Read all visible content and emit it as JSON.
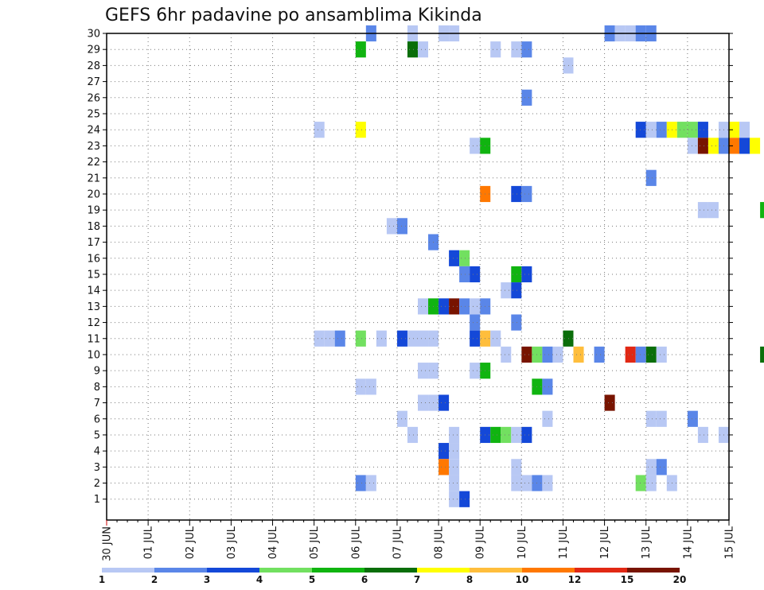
{
  "chart_data": {
    "type": "heatmap",
    "title": "GEFS 6hr padavine po ansamblima Kikinda",
    "xlabel": "",
    "ylabel": "",
    "x_start": "30 JUN",
    "x_step": "6h",
    "x_ticks": [
      "30 JUN",
      "01 JUL",
      "02 JUL",
      "03 JUL",
      "04 JUL",
      "05 JUL",
      "06 JUL",
      "07 JUL",
      "08 JUL",
      "09 JUL",
      "10 JUL",
      "11 JUL",
      "12 JUL",
      "13 JUL",
      "14 JUL",
      "15 JUL"
    ],
    "y_ticks": [
      1,
      2,
      3,
      4,
      5,
      6,
      7,
      8,
      9,
      10,
      11,
      12,
      13,
      14,
      15,
      16,
      17,
      18,
      19,
      20,
      21,
      22,
      23,
      24,
      25,
      26,
      27,
      28,
      29,
      30
    ],
    "ylim": [
      0,
      30
    ],
    "grid": true,
    "colorbar": {
      "labels": [
        "1",
        "2",
        "3",
        "4",
        "5",
        "6",
        "7",
        "8",
        "10",
        "12",
        "15",
        "20"
      ],
      "colors": [
        "#b8c8f4",
        "#5a86e8",
        "#1448d8",
        "#72e060",
        "#10b410",
        "#0a6e0a",
        "#ffff00",
        "#ffbe3c",
        "#ff7800",
        "#e12814",
        "#781400"
      ],
      "placement": "bottom"
    },
    "cells": [
      {
        "x": "06 JUL 06",
        "member": 30,
        "bin": 2
      },
      {
        "x": "07 JUL 06",
        "member": 30,
        "bin": 1
      },
      {
        "x": "08 JUL 00",
        "member": 30,
        "bin": 1
      },
      {
        "x": "08 JUL 06",
        "member": 30,
        "bin": 1
      },
      {
        "x": "12 JUL 00",
        "member": 30,
        "bin": 2
      },
      {
        "x": "12 JUL 06",
        "member": 30,
        "bin": 1
      },
      {
        "x": "12 JUL 12",
        "member": 30,
        "bin": 1
      },
      {
        "x": "12 JUL 18",
        "member": 30,
        "bin": 2
      },
      {
        "x": "13 JUL 00",
        "member": 30,
        "bin": 2
      },
      {
        "x": "06 JUL 00",
        "member": 29,
        "bin": 5
      },
      {
        "x": "07 JUL 06",
        "member": 29,
        "bin": 6
      },
      {
        "x": "07 JUL 12",
        "member": 29,
        "bin": 1
      },
      {
        "x": "09 JUL 06",
        "member": 29,
        "bin": 1
      },
      {
        "x": "09 JUL 18",
        "member": 29,
        "bin": 1
      },
      {
        "x": "10 JUL 00",
        "member": 29,
        "bin": 2
      },
      {
        "x": "11 JUL 00",
        "member": 28,
        "bin": 1
      },
      {
        "x": "10 JUL 00",
        "member": 26,
        "bin": 2
      },
      {
        "x": "05 JUL 00",
        "member": 24,
        "bin": 1
      },
      {
        "x": "06 JUL 00",
        "member": 24,
        "bin": 7
      },
      {
        "x": "12 JUL 18",
        "member": 24,
        "bin": 3
      },
      {
        "x": "13 JUL 00",
        "member": 24,
        "bin": 1
      },
      {
        "x": "13 JUL 06",
        "member": 24,
        "bin": 2
      },
      {
        "x": "13 JUL 12",
        "member": 24,
        "bin": 7
      },
      {
        "x": "13 JUL 18",
        "member": 24,
        "bin": 4
      },
      {
        "x": "14 JUL 00",
        "member": 24,
        "bin": 4
      },
      {
        "x": "14 JUL 06",
        "member": 24,
        "bin": 3
      },
      {
        "x": "14 JUL 18",
        "member": 24,
        "bin": 1
      },
      {
        "x": "15 JUL 00",
        "member": 24,
        "bin": 7
      },
      {
        "x": "15 JUL 06",
        "member": 24,
        "bin": 1
      },
      {
        "x": "08 JUL 18",
        "member": 23,
        "bin": 1
      },
      {
        "x": "09 JUL 00",
        "member": 23,
        "bin": 5
      },
      {
        "x": "14 JUL 00",
        "member": 23,
        "bin": 1
      },
      {
        "x": "14 JUL 06",
        "member": 23,
        "bin": 11
      },
      {
        "x": "14 JUL 12",
        "member": 23,
        "bin": 7
      },
      {
        "x": "14 JUL 18",
        "member": 23,
        "bin": 2
      },
      {
        "x": "15 JUL 00",
        "member": 23,
        "bin": 9
      },
      {
        "x": "15 JUL 06",
        "member": 23,
        "bin": 3
      },
      {
        "x": "15 JUL 12",
        "member": 23,
        "bin": 7
      },
      {
        "x": "13 JUL 00",
        "member": 21,
        "bin": 2
      },
      {
        "x": "09 JUL 00",
        "member": 20,
        "bin": 9
      },
      {
        "x": "09 JUL 18",
        "member": 20,
        "bin": 3
      },
      {
        "x": "10 JUL 00",
        "member": 20,
        "bin": 2
      },
      {
        "x": "14 JUL 06",
        "member": 19,
        "bin": 1
      },
      {
        "x": "14 JUL 12",
        "member": 19,
        "bin": 1
      },
      {
        "x": "15 JUL 18",
        "member": 19,
        "bin": 5
      },
      {
        "x": "06 JUL 18",
        "member": 18,
        "bin": 1
      },
      {
        "x": "07 JUL 00",
        "member": 18,
        "bin": 2
      },
      {
        "x": "07 JUL 18",
        "member": 17,
        "bin": 2
      },
      {
        "x": "08 JUL 06",
        "member": 16,
        "bin": 3
      },
      {
        "x": "08 JUL 12",
        "member": 16,
        "bin": 4
      },
      {
        "x": "08 JUL 12",
        "member": 15,
        "bin": 2
      },
      {
        "x": "08 JUL 18",
        "member": 15,
        "bin": 3
      },
      {
        "x": "09 JUL 18",
        "member": 15,
        "bin": 5
      },
      {
        "x": "10 JUL 00",
        "member": 15,
        "bin": 3
      },
      {
        "x": "09 JUL 12",
        "member": 14,
        "bin": 1
      },
      {
        "x": "09 JUL 18",
        "member": 14,
        "bin": 3
      },
      {
        "x": "07 JUL 12",
        "member": 13,
        "bin": 1
      },
      {
        "x": "07 JUL 18",
        "member": 13,
        "bin": 5
      },
      {
        "x": "08 JUL 00",
        "member": 13,
        "bin": 3
      },
      {
        "x": "08 JUL 06",
        "member": 13,
        "bin": 11
      },
      {
        "x": "08 JUL 12",
        "member": 13,
        "bin": 2
      },
      {
        "x": "08 JUL 18",
        "member": 13,
        "bin": 1
      },
      {
        "x": "09 JUL 00",
        "member": 13,
        "bin": 2
      },
      {
        "x": "08 JUL 18",
        "member": 12,
        "bin": 2
      },
      {
        "x": "09 JUL 18",
        "member": 12,
        "bin": 2
      },
      {
        "x": "05 JUL 00",
        "member": 11,
        "bin": 1
      },
      {
        "x": "05 JUL 06",
        "member": 11,
        "bin": 1
      },
      {
        "x": "05 JUL 12",
        "member": 11,
        "bin": 2
      },
      {
        "x": "06 JUL 00",
        "member": 11,
        "bin": 4
      },
      {
        "x": "06 JUL 12",
        "member": 11,
        "bin": 1
      },
      {
        "x": "07 JUL 00",
        "member": 11,
        "bin": 3
      },
      {
        "x": "07 JUL 06",
        "member": 11,
        "bin": 1
      },
      {
        "x": "07 JUL 12",
        "member": 11,
        "bin": 1
      },
      {
        "x": "07 JUL 18",
        "member": 11,
        "bin": 1
      },
      {
        "x": "08 JUL 18",
        "member": 11,
        "bin": 3
      },
      {
        "x": "09 JUL 00",
        "member": 11,
        "bin": 8
      },
      {
        "x": "09 JUL 06",
        "member": 11,
        "bin": 1
      },
      {
        "x": "11 JUL 00",
        "member": 11,
        "bin": 6
      },
      {
        "x": "09 JUL 12",
        "member": 10,
        "bin": 1
      },
      {
        "x": "10 JUL 00",
        "member": 10,
        "bin": 11
      },
      {
        "x": "10 JUL 06",
        "member": 10,
        "bin": 4
      },
      {
        "x": "10 JUL 12",
        "member": 10,
        "bin": 2
      },
      {
        "x": "10 JUL 18",
        "member": 10,
        "bin": 1
      },
      {
        "x": "11 JUL 06",
        "member": 10,
        "bin": 8
      },
      {
        "x": "11 JUL 18",
        "member": 10,
        "bin": 2
      },
      {
        "x": "12 JUL 12",
        "member": 10,
        "bin": 10
      },
      {
        "x": "12 JUL 18",
        "member": 10,
        "bin": 2
      },
      {
        "x": "13 JUL 00",
        "member": 10,
        "bin": 6
      },
      {
        "x": "13 JUL 06",
        "member": 10,
        "bin": 1
      },
      {
        "x": "15 JUL 18",
        "member": 10,
        "bin": 6
      },
      {
        "x": "07 JUL 12",
        "member": 9,
        "bin": 1
      },
      {
        "x": "07 JUL 18",
        "member": 9,
        "bin": 1
      },
      {
        "x": "08 JUL 18",
        "member": 9,
        "bin": 1
      },
      {
        "x": "09 JUL 00",
        "member": 9,
        "bin": 5
      },
      {
        "x": "06 JUL 00",
        "member": 8,
        "bin": 1
      },
      {
        "x": "06 JUL 06",
        "member": 8,
        "bin": 1
      },
      {
        "x": "10 JUL 06",
        "member": 8,
        "bin": 5
      },
      {
        "x": "10 JUL 12",
        "member": 8,
        "bin": 2
      },
      {
        "x": "12 JUL 00",
        "member": 7,
        "bin": 11
      },
      {
        "x": "07 JUL 12",
        "member": 7,
        "bin": 1
      },
      {
        "x": "07 JUL 18",
        "member": 7,
        "bin": 1
      },
      {
        "x": "08 JUL 00",
        "member": 7,
        "bin": 3
      },
      {
        "x": "07 JUL 00",
        "member": 6,
        "bin": 1
      },
      {
        "x": "10 JUL 12",
        "member": 6,
        "bin": 1
      },
      {
        "x": "13 JUL 00",
        "member": 6,
        "bin": 1
      },
      {
        "x": "13 JUL 06",
        "member": 6,
        "bin": 1
      },
      {
        "x": "14 JUL 00",
        "member": 6,
        "bin": 2
      },
      {
        "x": "07 JUL 06",
        "member": 5,
        "bin": 1
      },
      {
        "x": "08 JUL 06",
        "member": 5,
        "bin": 1
      },
      {
        "x": "09 JUL 00",
        "member": 5,
        "bin": 3
      },
      {
        "x": "09 JUL 06",
        "member": 5,
        "bin": 5
      },
      {
        "x": "09 JUL 12",
        "member": 5,
        "bin": 4
      },
      {
        "x": "09 JUL 18",
        "member": 5,
        "bin": 1
      },
      {
        "x": "10 JUL 00",
        "member": 5,
        "bin": 3
      },
      {
        "x": "14 JUL 06",
        "member": 5,
        "bin": 1
      },
      {
        "x": "14 JUL 18",
        "member": 5,
        "bin": 1
      },
      {
        "x": "08 JUL 00",
        "member": 4,
        "bin": 3
      },
      {
        "x": "08 JUL 06",
        "member": 4,
        "bin": 1
      },
      {
        "x": "08 JUL 00",
        "member": 3,
        "bin": 9
      },
      {
        "x": "08 JUL 06",
        "member": 3,
        "bin": 1
      },
      {
        "x": "09 JUL 18",
        "member": 3,
        "bin": 1
      },
      {
        "x": "13 JUL 00",
        "member": 3,
        "bin": 1
      },
      {
        "x": "13 JUL 06",
        "member": 3,
        "bin": 2
      },
      {
        "x": "06 JUL 00",
        "member": 2,
        "bin": 2
      },
      {
        "x": "06 JUL 06",
        "member": 2,
        "bin": 1
      },
      {
        "x": "08 JUL 06",
        "member": 2,
        "bin": 1
      },
      {
        "x": "09 JUL 18",
        "member": 2,
        "bin": 1
      },
      {
        "x": "10 JUL 00",
        "member": 2,
        "bin": 1
      },
      {
        "x": "10 JUL 06",
        "member": 2,
        "bin": 2
      },
      {
        "x": "10 JUL 12",
        "member": 2,
        "bin": 1
      },
      {
        "x": "12 JUL 18",
        "member": 2,
        "bin": 4
      },
      {
        "x": "13 JUL 00",
        "member": 2,
        "bin": 1
      },
      {
        "x": "13 JUL 12",
        "member": 2,
        "bin": 1
      },
      {
        "x": "08 JUL 06",
        "member": 1,
        "bin": 1
      },
      {
        "x": "08 JUL 12",
        "member": 1,
        "bin": 3
      }
    ]
  }
}
